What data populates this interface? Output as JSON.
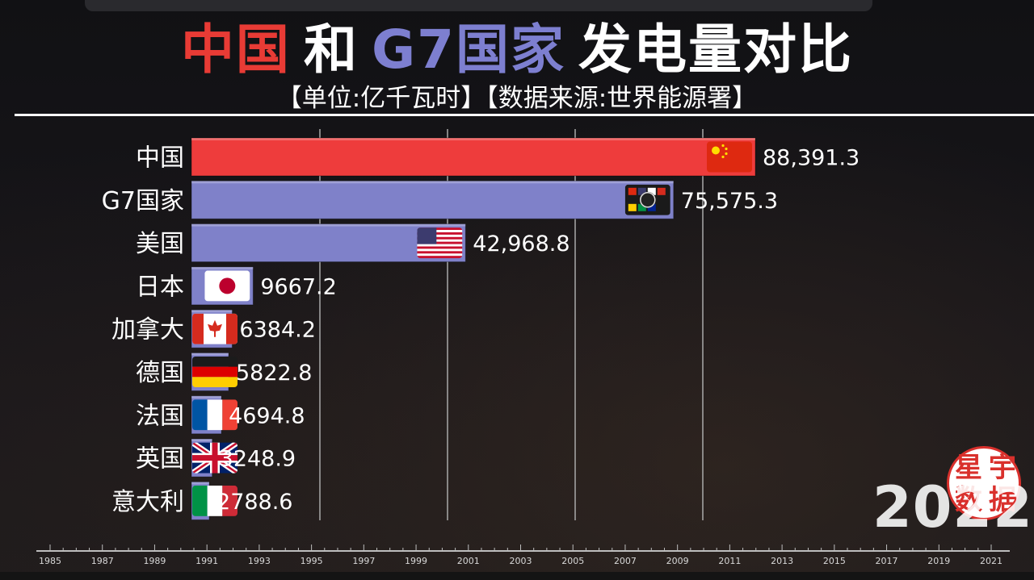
{
  "title": {
    "part1": "中国",
    "part2": "和",
    "part3": "G7国家",
    "part4": "发电量对比",
    "color1": "#e83b35",
    "color2": "#ffffff",
    "color3": "#7d7fd0",
    "color4": "#ffffff"
  },
  "subtitle": "【单位:亿千瓦时】【数据来源:世界能源署】",
  "watermark": {
    "chars": [
      "星",
      "宇",
      "数",
      "据"
    ]
  },
  "year_label": "2022",
  "chart_data": {
    "type": "bar",
    "orientation": "horizontal",
    "categories": [
      "中国",
      "G7国家",
      "美国",
      "日本",
      "加拿大",
      "德国",
      "法国",
      "英国",
      "意大利"
    ],
    "values": [
      88391.3,
      75575.3,
      42968.8,
      9667.2,
      6384.2,
      5822.8,
      4694.8,
      3248.9,
      2788.6
    ],
    "value_labels": [
      "88,391.3",
      "75,575.3",
      "42,968.8",
      "9667.2",
      "6384.2",
      "5822.8",
      "4694.8",
      "3248.9",
      "2788.6"
    ],
    "flag_icons": [
      "china-flag-icon",
      "g7-logo-icon",
      "usa-flag-icon",
      "japan-flag-icon",
      "canada-flag-icon",
      "germany-flag-icon",
      "france-flag-icon",
      "uk-flag-icon",
      "italy-flag-icon"
    ],
    "bar_colors": [
      "#ee3c3c",
      "#7f81c9",
      "#7f81c9",
      "#7f81c9",
      "#7f81c9",
      "#7f81c9",
      "#7f81c9",
      "#7f81c9",
      "#7f81c9"
    ],
    "xlim": [
      0,
      90000
    ],
    "grid": true,
    "timeline": {
      "ticks": [
        "1985",
        "1987",
        "1989",
        "1991",
        "1993",
        "1995",
        "1997",
        "1999",
        "2001",
        "2003",
        "2005",
        "2007",
        "2009",
        "2011",
        "2013",
        "2015",
        "2017",
        "2019",
        "2021"
      ]
    }
  }
}
